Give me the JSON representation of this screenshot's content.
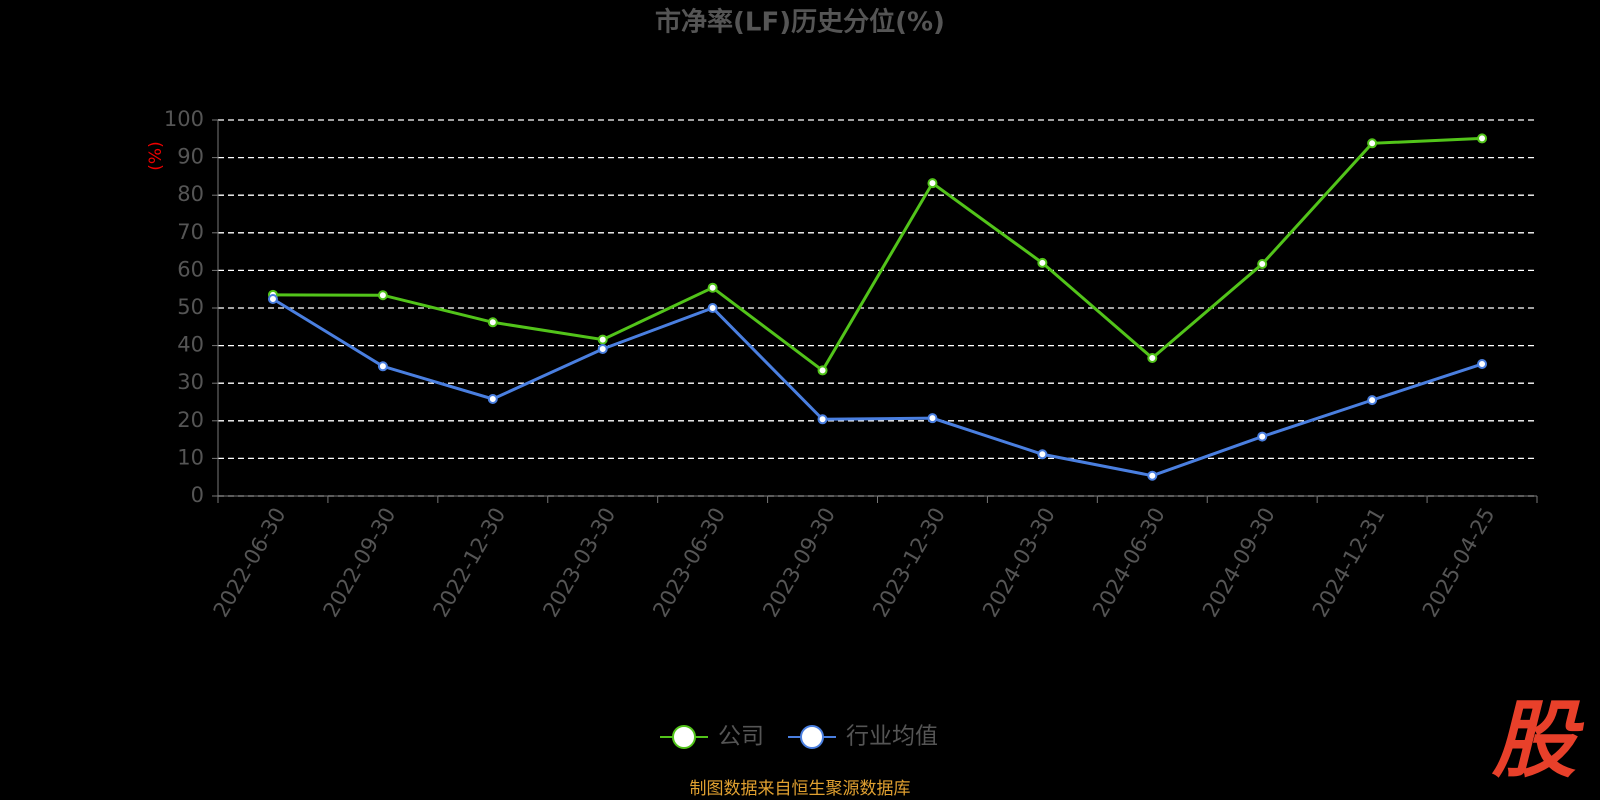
{
  "chart_data": {
    "type": "line",
    "title": "市净率(LF)历史分位(%)",
    "y_label": "(%)",
    "categories": [
      "2022-06-30",
      "2022-09-30",
      "2022-12-30",
      "2023-03-30",
      "2023-06-30",
      "2023-09-30",
      "2023-12-30",
      "2024-03-30",
      "2024-06-30",
      "2024-09-30",
      "2024-12-31",
      "2025-04-25"
    ],
    "series": [
      {
        "name": "公司",
        "color": "#52c41a",
        "values": [
          53.5,
          53.4,
          46.2,
          41.6,
          55.4,
          33.4,
          83.2,
          62.0,
          36.7,
          61.7,
          93.8,
          95.1
        ]
      },
      {
        "name": "行业均值",
        "color": "#4a7fe0",
        "values": [
          52.4,
          34.5,
          25.8,
          39.1,
          50.0,
          20.4,
          20.7,
          11.1,
          5.4,
          15.8,
          25.5,
          35.1
        ]
      }
    ],
    "ylim": [
      0,
      100
    ],
    "yticks": [
      0,
      10,
      20,
      30,
      40,
      50,
      60,
      70,
      80,
      90,
      100
    ],
    "grid": true,
    "source": "制图数据来自恒生聚源数据库",
    "watermark": "股"
  }
}
